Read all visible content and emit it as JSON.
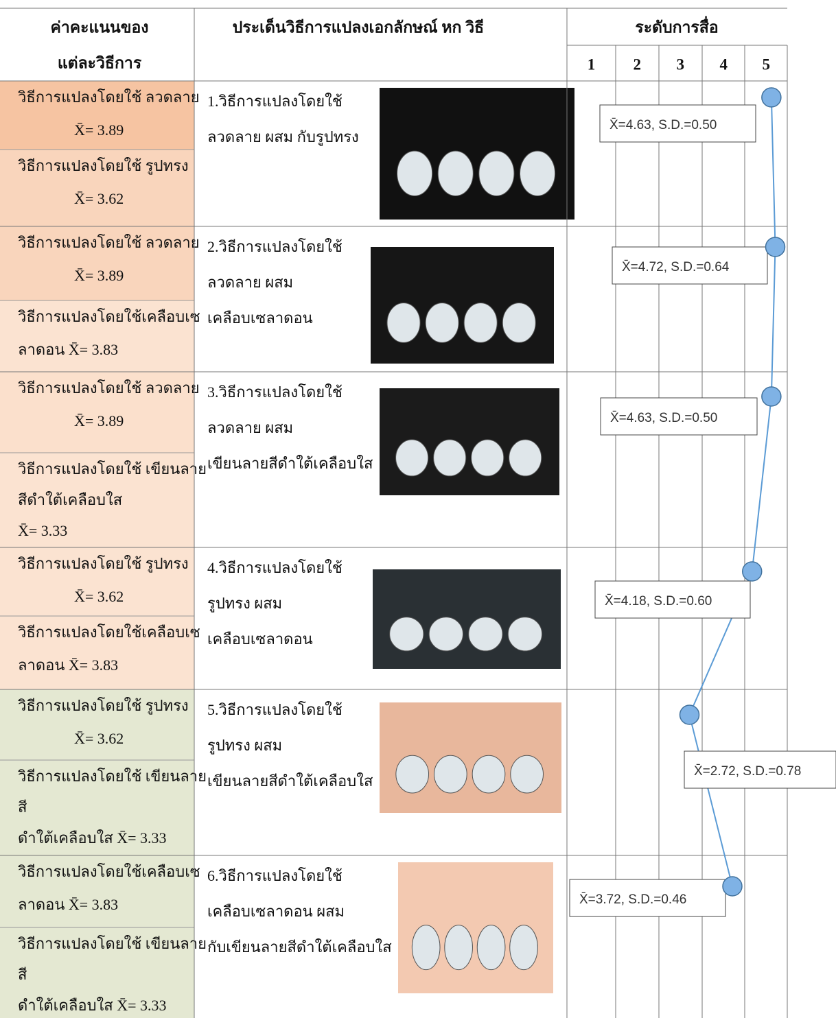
{
  "header": {
    "score_title": [
      "ค่าคะแนนของ",
      "แต่ละวิธีการ"
    ],
    "topic_title": "ประเด็นวิธีการแปลงเอกลักษณ์ หก วิธี",
    "level_title": "ระดับการสื่อ",
    "levels": [
      1,
      2,
      3,
      4,
      5
    ]
  },
  "rows": [
    {
      "methods": [
        {
          "lines": [
            "วิธีการแปลงโดยใช้ ลวดลาย",
            "X̄= 3.89"
          ]
        },
        {
          "lines": [
            "วิธีการแปลงโดยใช้ รูปทรง",
            "X̄= 3.62"
          ]
        }
      ],
      "description": [
        "1.วิธีการแปลงโดยใช้",
        "ลวดลาย ผสม กับรูปทรง"
      ],
      "rating": {
        "value": 4.63,
        "label": "X̄=4.63, S.D.=0.50"
      }
    },
    {
      "methods": [
        {
          "lines": [
            "วิธีการแปลงโดยใช้ ลวดลาย",
            "X̄= 3.89"
          ]
        },
        {
          "lines": [
            "วิธีการแปลงโดยใช้เคลือบเซ",
            "ลาดอน      X̄= 3.83"
          ]
        }
      ],
      "description": [
        "2.วิธีการแปลงโดยใช้",
        "ลวดลาย ผสม",
        "เคลือบเซลาดอน"
      ],
      "rating": {
        "value": 4.72,
        "label": "X̄=4.72, S.D.=0.64"
      }
    },
    {
      "methods": [
        {
          "lines": [
            "วิธีการแปลงโดยใช้ ลวดลาย",
            "X̄= 3.89"
          ]
        },
        {
          "lines": [
            "วิธีการแปลงโดยใช้ เขียนลาย",
            "สีดำใต้เคลือบใส",
            "X̄= 3.33"
          ]
        }
      ],
      "description": [
        "3.วิธีการแปลงโดยใช้",
        "ลวดลาย ผสม",
        "เขียนลายสีดำใต้เคลือบใส"
      ],
      "rating": {
        "value": 4.63,
        "label": "X̄=4.63, S.D.=0.50"
      }
    },
    {
      "methods": [
        {
          "lines": [
            "วิธีการแปลงโดยใช้ รูปทรง",
            "X̄= 3.62"
          ]
        },
        {
          "lines": [
            "วิธีการแปลงโดยใช้เคลือบเซ",
            "ลาดอน      X̄= 3.83"
          ]
        }
      ],
      "description": [
        "4.วิธีการแปลงโดยใช้",
        "รูปทรง ผสม",
        "เคลือบเซลาดอน"
      ],
      "rating": {
        "value": 4.18,
        "label": "X̄=4.18, S.D.=0.60"
      }
    },
    {
      "methods": [
        {
          "lines": [
            "วิธีการแปลงโดยใช้ รูปทรง",
            "X̄= 3.62"
          ]
        },
        {
          "lines": [
            "วิธีการแปลงโดยใช้ เขียนลาย",
            "สี",
            "ดำใต้เคลือบใส    X̄= 3.33"
          ]
        }
      ],
      "description": [
        "5.วิธีการแปลงโดยใช้",
        "รูปทรง ผสม",
        "เขียนลายสีดำใต้เคลือบใส"
      ],
      "rating": {
        "value": 2.72,
        "label": "X̄=2.72, S.D.=0.78"
      }
    },
    {
      "methods": [
        {
          "lines": [
            "วิธีการแปลงโดยใช้เคลือบเซ",
            "ลาดอน      X̄= 3.83"
          ]
        },
        {
          "lines": [
            "วิธีการแปลงโดยใช้ เขียนลาย",
            "สี",
            "ดำใต้เคลือบใส    X̄= 3.33"
          ]
        }
      ],
      "description": [
        "6.วิธีการแปลงโดยใช้",
        "เคลือบเซลาดอน ผสม",
        "กับเขียนลายสีดำใต้เคลือบใส"
      ],
      "rating": {
        "value": 3.72,
        "label": "X̄=3.72, S.D.=0.46"
      }
    }
  ]
}
